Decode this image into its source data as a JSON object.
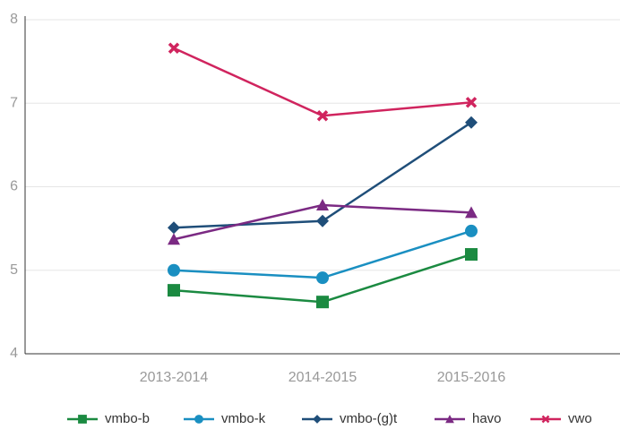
{
  "chart_data": {
    "type": "line",
    "categories": [
      "2013-2014",
      "2014-2015",
      "2015-2016"
    ],
    "series": [
      {
        "name": "vmbo-b",
        "color": "#1b8a41",
        "marker": "square",
        "values": [
          4.76,
          4.62,
          5.19
        ]
      },
      {
        "name": "vmbo-k",
        "color": "#1a8fc1",
        "marker": "circle",
        "values": [
          5.0,
          4.91,
          5.47
        ]
      },
      {
        "name": "vmbo-(g)t",
        "color": "#1f4e79",
        "marker": "diamond",
        "values": [
          5.51,
          5.59,
          6.77
        ]
      },
      {
        "name": "havo",
        "color": "#7b2a83",
        "marker": "triangle",
        "values": [
          5.37,
          5.78,
          5.69
        ]
      },
      {
        "name": "vwo",
        "color": "#d0245e",
        "marker": "cross",
        "values": [
          7.66,
          6.85,
          7.01
        ]
      }
    ],
    "ylim": [
      4,
      8
    ],
    "yticks": [
      4,
      5,
      6,
      7,
      8
    ],
    "grid": true,
    "legend": "bottom"
  }
}
